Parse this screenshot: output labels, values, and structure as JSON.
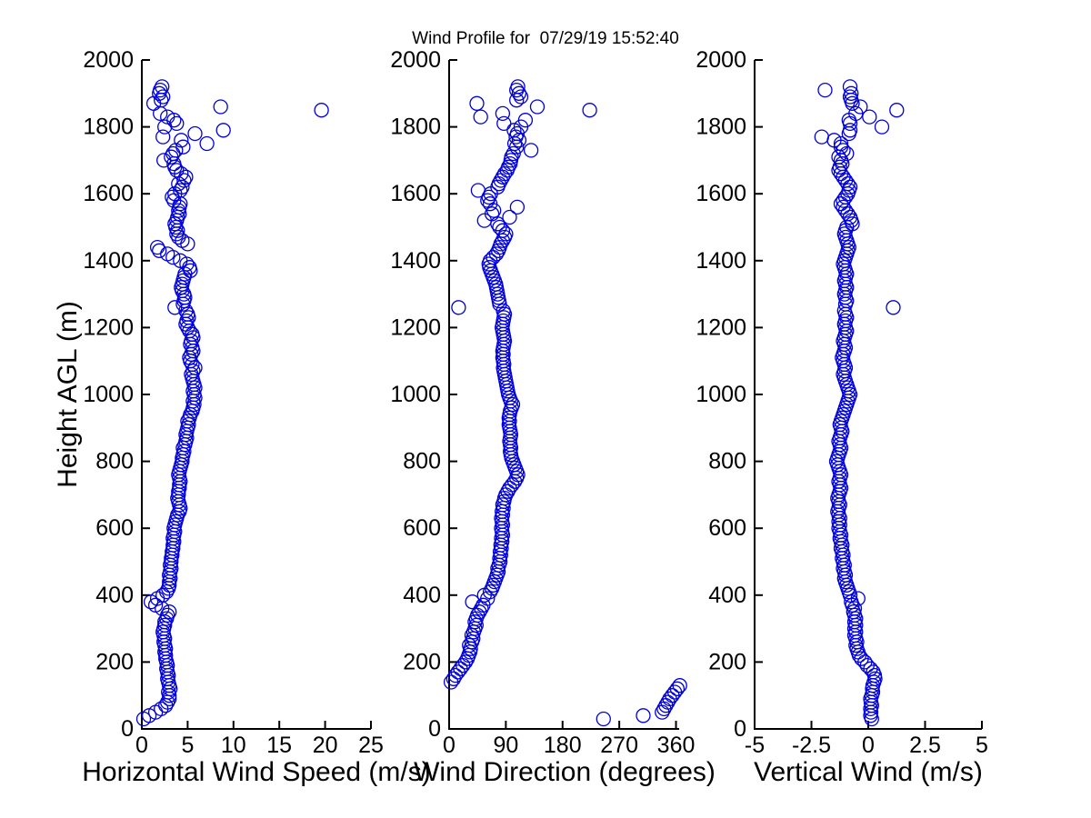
{
  "title": "Wind Profile for  07/29/19 15:52:40",
  "chart_data": {
    "type": "scatter",
    "title": "Wind Profile for  07/29/19 15:52:40",
    "ylabel": "Height AGL (m)",
    "ylim": [
      0,
      2000
    ],
    "yticks": [
      0,
      200,
      400,
      600,
      800,
      1000,
      1200,
      1400,
      1600,
      1800,
      2000
    ],
    "grid": false,
    "legend": false,
    "marker": {
      "shape": "open-circle",
      "color": "#0000dd"
    },
    "heights_m": [
      30,
      40,
      50,
      60,
      70,
      80,
      90,
      100,
      110,
      120,
      130,
      140,
      150,
      160,
      170,
      180,
      190,
      200,
      210,
      220,
      230,
      240,
      250,
      260,
      270,
      280,
      290,
      300,
      310,
      320,
      330,
      340,
      350,
      360,
      370,
      380,
      390,
      400,
      410,
      420,
      430,
      440,
      450,
      460,
      470,
      480,
      490,
      500,
      510,
      520,
      530,
      540,
      550,
      560,
      570,
      580,
      590,
      600,
      610,
      620,
      630,
      640,
      650,
      660,
      670,
      680,
      690,
      700,
      710,
      720,
      730,
      740,
      750,
      760,
      770,
      780,
      790,
      800,
      810,
      820,
      830,
      840,
      850,
      860,
      870,
      880,
      890,
      900,
      910,
      920,
      930,
      940,
      950,
      960,
      970,
      980,
      990,
      1000,
      1010,
      1020,
      1030,
      1040,
      1050,
      1060,
      1070,
      1080,
      1090,
      1100,
      1110,
      1120,
      1130,
      1140,
      1150,
      1160,
      1170,
      1180,
      1190,
      1200,
      1210,
      1220,
      1230,
      1240,
      1250,
      1260,
      1270,
      1280,
      1290,
      1300,
      1310,
      1320,
      1330,
      1340,
      1350,
      1360,
      1370,
      1380,
      1390,
      1400,
      1410,
      1420,
      1430,
      1440,
      1450,
      1460,
      1470,
      1480,
      1490,
      1500,
      1510,
      1520,
      1530,
      1540,
      1550,
      1560,
      1570,
      1580,
      1590,
      1600,
      1610,
      1620,
      1630,
      1640,
      1650,
      1660,
      1670,
      1680,
      1690,
      1700,
      1710,
      1720,
      1730,
      1740,
      1750,
      1760,
      1770,
      1780,
      1790,
      1800,
      1810,
      1820,
      1830,
      1840,
      1850,
      1860,
      1870,
      1880,
      1890,
      1900,
      1910,
      1920
    ],
    "panels": [
      {
        "name": "horizontal-wind-speed",
        "xlabel": "Horizontal Wind Speed (m/s)",
        "xlim": [
          0,
          25
        ],
        "xticks": [
          0,
          5,
          10,
          15,
          20,
          25
        ],
        "xtick_labels": [
          "0",
          "5",
          "10",
          "15",
          "20",
          "25"
        ],
        "values": [
          0.2,
          0.8,
          1.5,
          2.1,
          2.6,
          2.8,
          3.0,
          3.0,
          2.9,
          3.1,
          3.0,
          2.9,
          2.8,
          2.9,
          2.8,
          2.7,
          2.8,
          2.7,
          2.6,
          2.6,
          2.5,
          2.6,
          2.5,
          2.4,
          2.5,
          2.4,
          2.3,
          2.4,
          2.5,
          2.5,
          2.7,
          2.8,
          3.0,
          2.2,
          1.5,
          1.0,
          1.7,
          2.3,
          2.7,
          2.9,
          3.0,
          3.0,
          3.1,
          3.0,
          3.1,
          3.2,
          3.1,
          3.2,
          3.2,
          3.3,
          3.3,
          3.4,
          3.4,
          3.5,
          3.4,
          3.5,
          3.6,
          3.5,
          3.6,
          3.7,
          3.8,
          3.9,
          4.1,
          4.2,
          4.1,
          4.0,
          3.9,
          4.0,
          4.0,
          4.1,
          4.1,
          4.2,
          4.1,
          4.0,
          4.1,
          4.2,
          4.3,
          4.4,
          4.4,
          4.5,
          4.6,
          4.5,
          4.7,
          4.8,
          4.9,
          4.8,
          4.9,
          5.0,
          5.1,
          5.0,
          5.2,
          5.3,
          5.5,
          5.6,
          5.7,
          5.6,
          5.8,
          5.7,
          5.6,
          5.8,
          5.7,
          5.6,
          5.5,
          5.4,
          5.6,
          5.8,
          5.5,
          5.3,
          5.2,
          5.4,
          5.6,
          5.5,
          5.3,
          5.4,
          5.6,
          5.5,
          5.2,
          5.0,
          4.8,
          4.9,
          5.1,
          5.0,
          4.8,
          3.6,
          4.5,
          4.6,
          4.7,
          4.6,
          4.4,
          4.3,
          4.4,
          4.5,
          4.6,
          4.7,
          5.3,
          5.2,
          4.9,
          4.2,
          3.4,
          2.8,
          1.9,
          1.7,
          5.0,
          4.4,
          4.0,
          3.8,
          3.9,
          3.7,
          3.6,
          3.8,
          3.9,
          4.1,
          4.0,
          4.1,
          4.2,
          3.5,
          3.3,
          3.6,
          4.2,
          4.4,
          4.0,
          4.6,
          4.8,
          4.3,
          3.8,
          3.6,
          3.5,
          2.4,
          3.2,
          3.4,
          3.7,
          4.5,
          7.1,
          4.3,
          2.3,
          5.8,
          8.9,
          2.5,
          3.8,
          3.5,
          2.8,
          2.0,
          19.6,
          8.6,
          1.3,
          2.1,
          2.3,
          1.9,
          2.0,
          2.2
        ]
      },
      {
        "name": "wind-direction",
        "xlabel": "Wind Direction (degrees)",
        "xlim": [
          0,
          365
        ],
        "xticks": [
          0,
          90,
          180,
          270,
          360
        ],
        "xtick_labels": [
          "0",
          "90",
          "180",
          "270",
          "360"
        ],
        "values": [
          245,
          308,
          338,
          341,
          344,
          347,
          350,
          354,
          358,
          362,
          366,
          3,
          7,
          10,
          14,
          18,
          22,
          26,
          29,
          31,
          33,
          34,
          32,
          36,
          38,
          36,
          39,
          41,
          43,
          41,
          43,
          45,
          48,
          51,
          54,
          37,
          61,
          56,
          65,
          68,
          70,
          72,
          74,
          76,
          78,
          77,
          79,
          81,
          80,
          82,
          81,
          83,
          82,
          84,
          83,
          85,
          84,
          83,
          85,
          84,
          83,
          85,
          84,
          86,
          85,
          87,
          88,
          90,
          93,
          96,
          100,
          104,
          107,
          109,
          107,
          105,
          103,
          101,
          99,
          98,
          97,
          98,
          97,
          96,
          97,
          98,
          97,
          96,
          95,
          96,
          95,
          96,
          97,
          99,
          101,
          98,
          96,
          94,
          93,
          92,
          91,
          90,
          89,
          88,
          87,
          86,
          87,
          86,
          85,
          86,
          85,
          86,
          87,
          88,
          87,
          86,
          85,
          84,
          85,
          86,
          87,
          88,
          86,
          15,
          80,
          79,
          78,
          77,
          76,
          75,
          74,
          72,
          70,
          68,
          66,
          64,
          63,
          65,
          70,
          75,
          78,
          80,
          82,
          85,
          88,
          90,
          85,
          80,
          77,
          56,
          96,
          68,
          71,
          108,
          65,
          61,
          63,
          66,
          46,
          77,
          79,
          82,
          85,
          88,
          92,
          94,
          97,
          98,
          99,
          102,
          130,
          107,
          104,
          111,
          106,
          108,
          103,
          114,
          87,
          121,
          50,
          85,
          223,
          140,
          44,
          107,
          114,
          111,
          107,
          109
        ]
      },
      {
        "name": "vertical-wind",
        "xlabel": "Vertical Wind (m/s)",
        "xlim": [
          -5,
          5
        ],
        "xticks": [
          -5,
          -2.5,
          0,
          2.5,
          5
        ],
        "xtick_labels": [
          "-5",
          "-2.5",
          "0",
          "2.5",
          "5"
        ],
        "values": [
          0.15,
          0.1,
          0.12,
          0.1,
          0.15,
          0.12,
          0.1,
          0.15,
          0.2,
          0.18,
          0.2,
          0.25,
          0.3,
          0.28,
          0.22,
          0.1,
          -0.05,
          -0.15,
          -0.3,
          -0.4,
          -0.45,
          -0.5,
          -0.55,
          -0.5,
          -0.55,
          -0.6,
          -0.55,
          -0.6,
          -0.55,
          -0.6,
          -0.55,
          -0.6,
          -0.65,
          -0.6,
          -0.7,
          -0.75,
          -0.45,
          -0.8,
          -0.85,
          -0.9,
          -0.95,
          -1.0,
          -1.05,
          -1.0,
          -1.05,
          -1.1,
          -1.05,
          -1.1,
          -1.15,
          -1.1,
          -1.15,
          -1.2,
          -1.15,
          -1.2,
          -1.25,
          -1.2,
          -1.25,
          -1.3,
          -1.25,
          -1.3,
          -1.25,
          -1.3,
          -1.35,
          -1.3,
          -1.25,
          -1.3,
          -1.35,
          -1.3,
          -1.25,
          -1.2,
          -1.25,
          -1.3,
          -1.25,
          -1.2,
          -1.25,
          -1.3,
          -1.35,
          -1.4,
          -1.35,
          -1.3,
          -1.25,
          -1.2,
          -1.25,
          -1.3,
          -1.25,
          -1.2,
          -1.15,
          -1.2,
          -1.25,
          -1.2,
          -1.15,
          -1.1,
          -1.05,
          -1.0,
          -0.95,
          -0.9,
          -0.85,
          -0.8,
          -0.85,
          -0.9,
          -0.95,
          -1.0,
          -1.05,
          -1.1,
          -1.05,
          -1.0,
          -1.05,
          -1.1,
          -1.15,
          -1.1,
          -1.05,
          -1.0,
          -1.05,
          -1.1,
          -1.05,
          -1.0,
          -0.95,
          -1.0,
          -1.05,
          -1.0,
          -0.95,
          -1.0,
          -1.05,
          1.1,
          -1.0,
          -0.95,
          -1.0,
          -1.05,
          -1.0,
          -0.95,
          -1.0,
          -1.05,
          -1.0,
          -0.95,
          -1.0,
          -1.05,
          -1.1,
          -1.05,
          -1.0,
          -0.95,
          -0.9,
          -0.85,
          -0.9,
          -0.95,
          -1.0,
          -1.05,
          -1.0,
          -0.95,
          -0.7,
          -0.75,
          -0.8,
          -0.9,
          -1.0,
          -1.1,
          -1.2,
          -1.1,
          -1.0,
          -0.9,
          -0.85,
          -0.8,
          -0.9,
          -1.0,
          -1.1,
          -1.2,
          -1.3,
          -1.25,
          -1.15,
          -1.2,
          -1.3,
          -0.95,
          -1.1,
          -1.2,
          -1.2,
          -1.5,
          -2.05,
          -0.85,
          -0.8,
          0.6,
          -0.8,
          -0.85,
          0.05,
          -0.55,
          1.25,
          -0.35,
          -0.7,
          -0.75,
          -0.8,
          -0.75,
          -1.9,
          -0.8
        ]
      }
    ]
  }
}
